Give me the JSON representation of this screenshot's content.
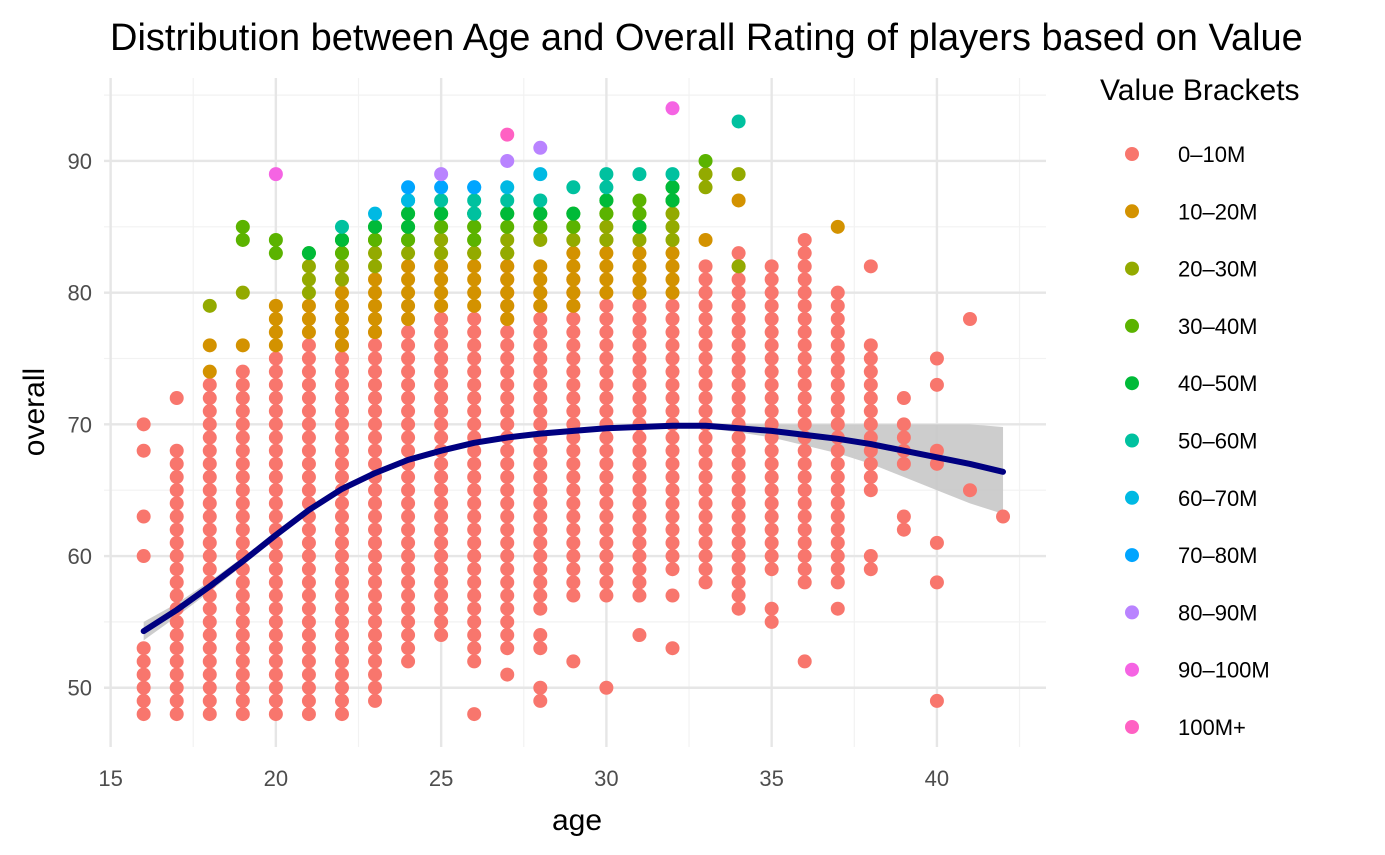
{
  "chart_data": {
    "type": "scatter",
    "title": "Distribution between Age and Overall Rating of players based on Value",
    "xlabel": "age",
    "ylabel": "overall",
    "xlim": [
      14.8,
      43.3
    ],
    "ylim": [
      45.5,
      96.3
    ],
    "x_ticks": [
      15,
      20,
      25,
      30,
      35,
      40
    ],
    "y_ticks": [
      50,
      60,
      70,
      80,
      90
    ],
    "grid": true,
    "legend": {
      "title": "Value Brackets",
      "position": "right",
      "entries": [
        {
          "label": "0–10M",
          "color": "#F8766D"
        },
        {
          "label": "10–20M",
          "color": "#D39200"
        },
        {
          "label": "20–30M",
          "color": "#93AA00"
        },
        {
          "label": "30–40M",
          "color": "#5BB300"
        },
        {
          "label": "40–50M",
          "color": "#00BA38"
        },
        {
          "label": "50–60M",
          "color": "#00C19F"
        },
        {
          "label": "60–70M",
          "color": "#00B9E3"
        },
        {
          "label": "70–80M",
          "color": "#00A5FF"
        },
        {
          "label": "80–90M",
          "color": "#B983FF"
        },
        {
          "label": "90–100M",
          "color": "#F564E3"
        },
        {
          "label": "100M+",
          "color": "#FF61C3"
        }
      ]
    },
    "series": [
      {
        "name": "0–10M",
        "color": "#F8766D",
        "ranges": [
          [
            16,
            48,
            53
          ],
          [
            16,
            60,
            60
          ],
          [
            16,
            63,
            63
          ],
          [
            16,
            68,
            68
          ],
          [
            16,
            70,
            70
          ],
          [
            17,
            48,
            68
          ],
          [
            17,
            72,
            72
          ],
          [
            18,
            48,
            73
          ],
          [
            19,
            48,
            74
          ],
          [
            20,
            48,
            75
          ],
          [
            21,
            48,
            76
          ],
          [
            22,
            48,
            76
          ],
          [
            23,
            49,
            77
          ],
          [
            24,
            52,
            77
          ],
          [
            25,
            54,
            78
          ],
          [
            26,
            48,
            48
          ],
          [
            26,
            52,
            78
          ],
          [
            27,
            51,
            51
          ],
          [
            27,
            53,
            82
          ],
          [
            28,
            49,
            50
          ],
          [
            28,
            53,
            54
          ],
          [
            28,
            56,
            80
          ],
          [
            29,
            52,
            52
          ],
          [
            29,
            57,
            81
          ],
          [
            30,
            50,
            50
          ],
          [
            30,
            57,
            79
          ],
          [
            31,
            54,
            54
          ],
          [
            31,
            57,
            81
          ],
          [
            32,
            53,
            53
          ],
          [
            32,
            57,
            57
          ],
          [
            32,
            59,
            79
          ],
          [
            33,
            58,
            82
          ],
          [
            34,
            56,
            83
          ],
          [
            35,
            55,
            56
          ],
          [
            35,
            59,
            82
          ],
          [
            36,
            52,
            52
          ],
          [
            36,
            58,
            84
          ],
          [
            37,
            56,
            56
          ],
          [
            37,
            58,
            80
          ],
          [
            38,
            59,
            60
          ],
          [
            38,
            65,
            76
          ],
          [
            38,
            82,
            82
          ],
          [
            39,
            62,
            63
          ],
          [
            39,
            67,
            70
          ],
          [
            39,
            72,
            72
          ],
          [
            40,
            49,
            49
          ],
          [
            40,
            58,
            58
          ],
          [
            40,
            61,
            61
          ],
          [
            40,
            67,
            68
          ],
          [
            40,
            73,
            73
          ],
          [
            40,
            75,
            75
          ],
          [
            41,
            65,
            65
          ],
          [
            41,
            78,
            78
          ],
          [
            42,
            63,
            63
          ]
        ]
      },
      {
        "name": "10–20M",
        "color": "#D39200",
        "ranges": [
          [
            18,
            74,
            74
          ],
          [
            18,
            76,
            76
          ],
          [
            19,
            76,
            76
          ],
          [
            20,
            76,
            79
          ],
          [
            21,
            77,
            79
          ],
          [
            22,
            76,
            80
          ],
          [
            23,
            77,
            81
          ],
          [
            24,
            78,
            82
          ],
          [
            25,
            79,
            82
          ],
          [
            26,
            79,
            83
          ],
          [
            27,
            78,
            83
          ],
          [
            28,
            79,
            82
          ],
          [
            29,
            79,
            83
          ],
          [
            30,
            80,
            84
          ],
          [
            31,
            80,
            83
          ],
          [
            32,
            80,
            83
          ],
          [
            33,
            84,
            84
          ],
          [
            34,
            87,
            87
          ],
          [
            37,
            85,
            85
          ]
        ]
      },
      {
        "name": "20–30M",
        "color": "#93AA00",
        "ranges": [
          [
            18,
            79,
            79
          ],
          [
            19,
            80,
            80
          ],
          [
            21,
            80,
            82
          ],
          [
            22,
            81,
            83
          ],
          [
            23,
            82,
            84
          ],
          [
            24,
            83,
            84
          ],
          [
            25,
            83,
            84
          ],
          [
            26,
            83,
            85
          ],
          [
            27,
            83,
            84
          ],
          [
            28,
            84,
            85
          ],
          [
            29,
            84,
            85
          ],
          [
            30,
            84,
            86
          ],
          [
            31,
            84,
            86
          ],
          [
            32,
            84,
            86
          ],
          [
            33,
            88,
            89
          ],
          [
            34,
            82,
            82
          ],
          [
            34,
            89,
            89
          ]
        ]
      },
      {
        "name": "30–40M",
        "color": "#5BB300",
        "ranges": [
          [
            19,
            84,
            85
          ],
          [
            20,
            83,
            84
          ],
          [
            21,
            83,
            83
          ],
          [
            22,
            83,
            84
          ],
          [
            23,
            84,
            85
          ],
          [
            24,
            84,
            86
          ],
          [
            25,
            85,
            86
          ],
          [
            26,
            84,
            86
          ],
          [
            27,
            85,
            86
          ],
          [
            28,
            85,
            86
          ],
          [
            29,
            85,
            86
          ],
          [
            30,
            86,
            87
          ],
          [
            31,
            86,
            87
          ],
          [
            32,
            87,
            88
          ],
          [
            33,
            90,
            90
          ]
        ]
      },
      {
        "name": "40–50M",
        "color": "#00BA38",
        "ranges": [
          [
            21,
            83,
            83
          ],
          [
            22,
            84,
            84
          ],
          [
            23,
            85,
            85
          ],
          [
            24,
            85,
            86
          ],
          [
            25,
            86,
            86
          ],
          [
            26,
            86,
            86
          ],
          [
            27,
            86,
            86
          ],
          [
            28,
            86,
            86
          ],
          [
            29,
            86,
            86
          ],
          [
            30,
            87,
            87
          ],
          [
            31,
            85,
            85
          ],
          [
            32,
            87,
            88
          ]
        ]
      },
      {
        "name": "50–60M",
        "color": "#00C19F",
        "ranges": [
          [
            22,
            85,
            85
          ],
          [
            24,
            87,
            87
          ],
          [
            25,
            87,
            87
          ],
          [
            26,
            86,
            87
          ],
          [
            27,
            87,
            87
          ],
          [
            28,
            87,
            87
          ],
          [
            29,
            88,
            88
          ],
          [
            30,
            88,
            89
          ],
          [
            31,
            89,
            89
          ],
          [
            32,
            89,
            89
          ],
          [
            34,
            93,
            93
          ]
        ]
      },
      {
        "name": "60–70M",
        "color": "#00B9E3",
        "ranges": [
          [
            23,
            86,
            86
          ],
          [
            24,
            87,
            87
          ],
          [
            26,
            88,
            88
          ],
          [
            27,
            88,
            88
          ],
          [
            28,
            89,
            89
          ]
        ]
      },
      {
        "name": "70–80M",
        "color": "#00A5FF",
        "ranges": [
          [
            24,
            88,
            88
          ],
          [
            25,
            88,
            88
          ],
          [
            26,
            88,
            88
          ]
        ]
      },
      {
        "name": "80–90M",
        "color": "#B983FF",
        "ranges": [
          [
            25,
            89,
            89
          ],
          [
            27,
            90,
            90
          ],
          [
            28,
            91,
            91
          ]
        ]
      },
      {
        "name": "90–100M",
        "color": "#F564E3",
        "ranges": [
          [
            20,
            89,
            89
          ],
          [
            32,
            94,
            94
          ]
        ]
      },
      {
        "name": "100M+",
        "color": "#FF61C3",
        "ranges": [
          [
            27,
            92,
            92
          ]
        ]
      }
    ],
    "trend_line": {
      "color": "#000080",
      "band_color": "#c8c8c8",
      "points": [
        [
          16,
          54.3
        ],
        [
          17,
          55.9
        ],
        [
          18,
          57.7
        ],
        [
          19,
          59.6
        ],
        [
          20,
          61.6
        ],
        [
          21,
          63.5
        ],
        [
          22,
          65.1
        ],
        [
          23,
          66.3
        ],
        [
          24,
          67.3
        ],
        [
          25,
          68.0
        ],
        [
          26,
          68.6
        ],
        [
          27,
          69.0
        ],
        [
          28,
          69.3
        ],
        [
          29,
          69.5
        ],
        [
          30,
          69.7
        ],
        [
          31,
          69.8
        ],
        [
          32,
          69.9
        ],
        [
          33,
          69.9
        ],
        [
          34,
          69.7
        ],
        [
          35,
          69.5
        ],
        [
          36,
          69.2
        ],
        [
          37,
          68.9
        ],
        [
          38,
          68.5
        ],
        [
          39,
          68.0
        ],
        [
          40,
          67.5
        ],
        [
          41,
          67.0
        ],
        [
          42,
          66.4
        ]
      ],
      "band": [
        [
          16,
          53.6,
          55.0
        ],
        [
          17,
          55.4,
          56.4
        ],
        [
          18,
          57.3,
          58.1
        ],
        [
          19,
          59.3,
          59.9
        ],
        [
          20,
          61.3,
          61.9
        ],
        [
          21,
          63.3,
          63.7
        ],
        [
          22,
          64.9,
          65.3
        ],
        [
          23,
          66.2,
          66.4
        ],
        [
          24,
          67.2,
          67.4
        ],
        [
          25,
          67.9,
          68.1
        ],
        [
          26,
          68.5,
          68.7
        ],
        [
          27,
          68.9,
          69.1
        ],
        [
          28,
          69.2,
          69.4
        ],
        [
          29,
          69.4,
          69.6
        ],
        [
          30,
          69.6,
          69.8
        ],
        [
          31,
          69.7,
          69.9
        ],
        [
          32,
          69.8,
          70.0
        ],
        [
          33,
          69.7,
          70.1
        ],
        [
          34,
          69.4,
          70.0
        ],
        [
          35,
          69.0,
          70.0
        ],
        [
          36,
          68.4,
          70.0
        ],
        [
          37,
          67.8,
          70.0
        ],
        [
          38,
          67.0,
          70.0
        ],
        [
          39,
          66.0,
          70.0
        ],
        [
          40,
          65.0,
          70.0
        ],
        [
          41,
          64.0,
          70.0
        ],
        [
          42,
          63.2,
          69.8
        ]
      ]
    }
  }
}
